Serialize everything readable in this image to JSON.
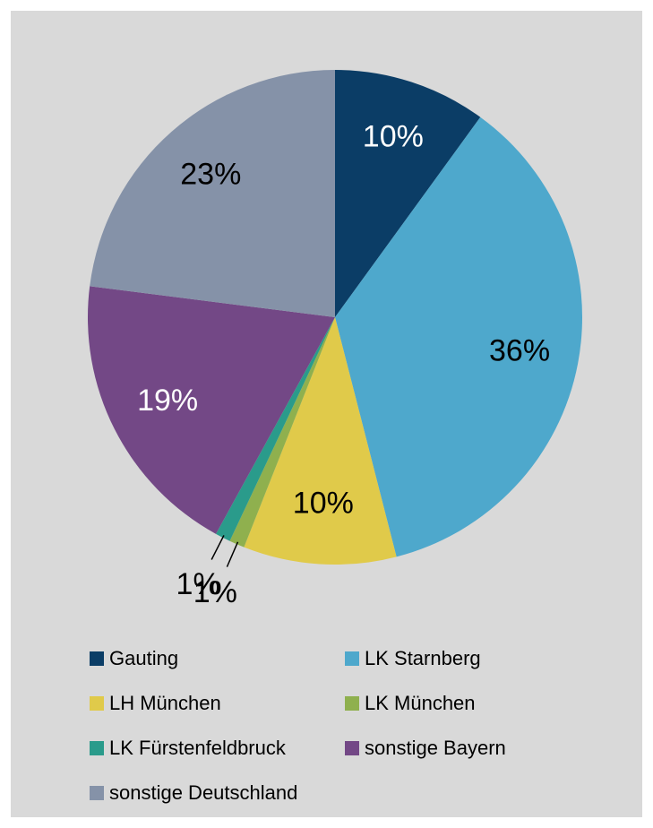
{
  "chart_data": {
    "type": "pie",
    "categories": [
      "Gauting",
      "LK Starnberg",
      "LH München",
      "LK München",
      "LK Fürstenfeldbruck",
      "sonstige Bayern",
      "sonstige Deutschland"
    ],
    "values": [
      10,
      36,
      10,
      1,
      1,
      19,
      23
    ],
    "value_labels": [
      "10%",
      "36%",
      "10%",
      "1%",
      "1%",
      "19%",
      "23%"
    ],
    "colors": [
      "#0b3d66",
      "#4ea8cc",
      "#e0ca4a",
      "#8fb04e",
      "#2a9b8b",
      "#734886",
      "#8592a8"
    ],
    "legend": "bottom"
  }
}
